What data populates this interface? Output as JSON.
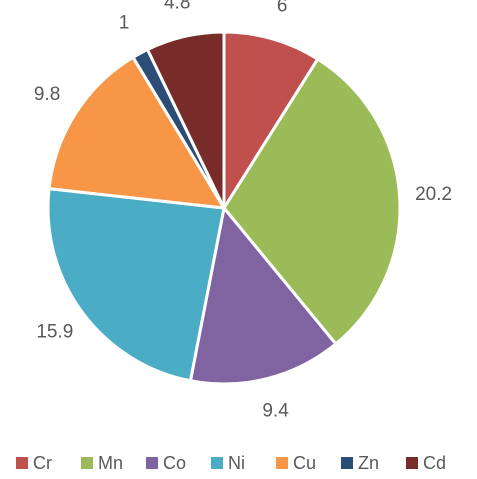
{
  "chart_data": {
    "type": "pie",
    "categories": [
      "Cr",
      "Mn",
      "Co",
      "Ni",
      "Cu",
      "Zn",
      "Cd"
    ],
    "values": [
      6,
      20.2,
      9.4,
      15.9,
      9.8,
      1,
      4.8
    ],
    "colors": [
      "#c0504d",
      "#9bbb59",
      "#8064a2",
      "#4bacc6",
      "#f79646",
      "#2c4d75",
      "#772c2a"
    ],
    "legend": "bottom"
  }
}
